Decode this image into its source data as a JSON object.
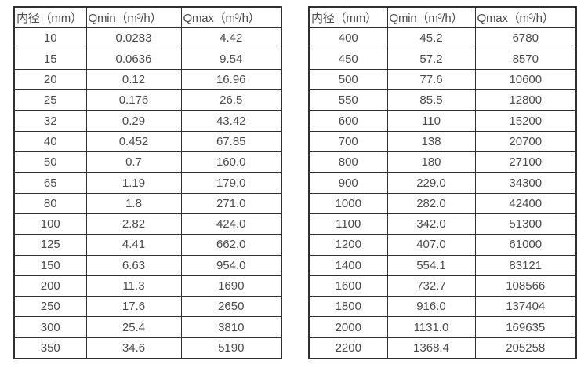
{
  "colors": {
    "background": "#ffffff",
    "border": "#303030",
    "text": "#4a4a4a"
  },
  "tables": [
    {
      "name": "flow-rate-table-small-diameters",
      "headers": [
        "内径（mm）",
        "Qmin（m³/h）",
        "Qmax（m³/h）"
      ],
      "rows": [
        [
          "10",
          "0.0283",
          "4.42"
        ],
        [
          "15",
          "0.0636",
          "9.54"
        ],
        [
          "20",
          "0.12",
          "16.96"
        ],
        [
          "25",
          "0.176",
          "26.5"
        ],
        [
          "32",
          "0.29",
          "43.42"
        ],
        [
          "40",
          "0.452",
          "67.85"
        ],
        [
          "50",
          "0.7",
          "160.0"
        ],
        [
          "65",
          "1.19",
          "179.0"
        ],
        [
          "80",
          "1.8",
          "271.0"
        ],
        [
          "100",
          "2.82",
          "424.0"
        ],
        [
          "125",
          "4.41",
          "662.0"
        ],
        [
          "150",
          "6.63",
          "954.0"
        ],
        [
          "200",
          "11.3",
          "1690"
        ],
        [
          "250",
          "17.6",
          "2650"
        ],
        [
          "300",
          "25.4",
          "3810"
        ],
        [
          "350",
          "34.6",
          "5190"
        ]
      ]
    },
    {
      "name": "flow-rate-table-large-diameters",
      "headers": [
        "内径（mm）",
        "Qmin（m³/h）",
        "Qmax（m³/h）"
      ],
      "rows": [
        [
          "400",
          "45.2",
          "6780"
        ],
        [
          "450",
          "57.2",
          "8570"
        ],
        [
          "500",
          "77.6",
          "10600"
        ],
        [
          "550",
          "85.5",
          "12800"
        ],
        [
          "600",
          "110",
          "15200"
        ],
        [
          "700",
          "138",
          "20700"
        ],
        [
          "800",
          "180",
          "27100"
        ],
        [
          "900",
          "229.0",
          "34300"
        ],
        [
          "1000",
          "282.0",
          "42400"
        ],
        [
          "1100",
          "342.0",
          "51300"
        ],
        [
          "1200",
          "407.0",
          "61000"
        ],
        [
          "1400",
          "554.1",
          "83121"
        ],
        [
          "1600",
          "732.7",
          "108566"
        ],
        [
          "1800",
          "916.0",
          "137404"
        ],
        [
          "2000",
          "1131.0",
          "169635"
        ],
        [
          "2200",
          "1368.4",
          "205258"
        ]
      ]
    }
  ]
}
